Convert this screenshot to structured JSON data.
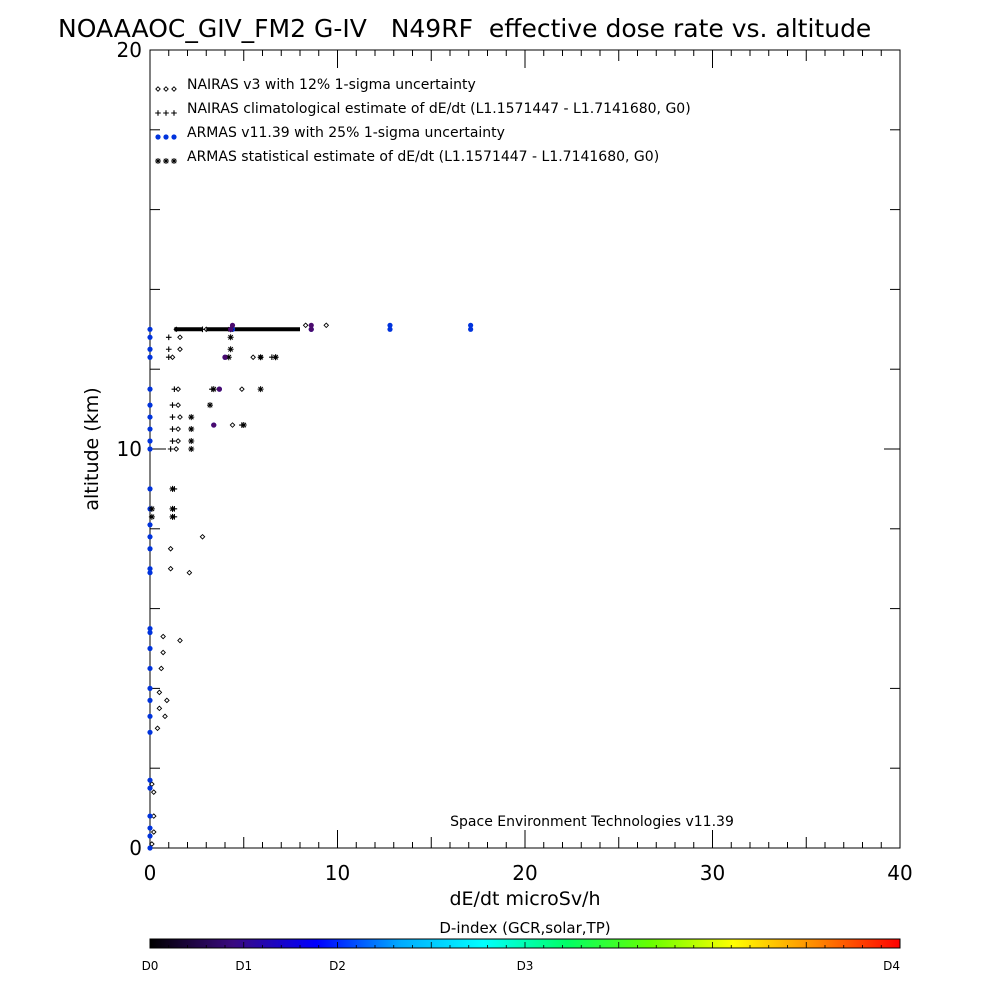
{
  "chart_data": {
    "type": "scatter",
    "title": "NOAAAOC_GIV_FM2 G-IV   N49RF  effective dose rate vs. altitude",
    "xlabel": "dE/dt microSv/h",
    "ylabel": "altitude (km)",
    "xlim": [
      0,
      40
    ],
    "ylim": [
      0,
      20
    ],
    "x_ticks": [
      0,
      10,
      20,
      30,
      40
    ],
    "y_ticks": [
      0,
      10,
      20
    ],
    "legend_position": "top-left",
    "annotation": "Space Environment Technologies v11.39",
    "colorbar": {
      "title": "D-index (GCR,solar,TP)",
      "labels": [
        {
          "text": "D0",
          "pos": 0.0
        },
        {
          "text": "D1",
          "pos": 0.125
        },
        {
          "text": "D2",
          "pos": 0.25
        },
        {
          "text": "D3",
          "pos": 0.5
        },
        {
          "text": "D4",
          "pos": 1.0
        }
      ],
      "stops": [
        "#000000",
        "#3a0a80",
        "#0000ff",
        "#00aaff",
        "#00ffff",
        "#00ff66",
        "#66ff00",
        "#ffff00",
        "#ff8800",
        "#ff0000"
      ]
    },
    "series": [
      {
        "name": "NAIRAS v3 with 12% 1-sigma uncertainty",
        "marker": "diamond",
        "color": "#000000",
        "points": [
          [
            0.1,
            0.1
          ],
          [
            0.2,
            0.4
          ],
          [
            0.2,
            0.8
          ],
          [
            0.2,
            1.4
          ],
          [
            0.1,
            1.6
          ],
          [
            0.4,
            3.0
          ],
          [
            0.8,
            3.3
          ],
          [
            0.5,
            3.5
          ],
          [
            0.9,
            3.7
          ],
          [
            0.5,
            3.9
          ],
          [
            0.6,
            4.5
          ],
          [
            0.7,
            4.9
          ],
          [
            0.7,
            5.3
          ],
          [
            1.6,
            5.2
          ],
          [
            2.1,
            6.9
          ],
          [
            1.1,
            7.0
          ],
          [
            1.1,
            7.5
          ],
          [
            2.8,
            7.8
          ],
          [
            1.4,
            10.0
          ],
          [
            1.5,
            10.2
          ],
          [
            1.5,
            10.5
          ],
          [
            1.6,
            10.8
          ],
          [
            1.5,
            11.1
          ],
          [
            1.5,
            11.5
          ],
          [
            1.2,
            12.3
          ],
          [
            1.6,
            12.5
          ],
          [
            1.6,
            12.8
          ],
          [
            1.4,
            13.0
          ],
          [
            4.4,
            10.6
          ],
          [
            4.9,
            11.5
          ],
          [
            5.5,
            12.3
          ],
          [
            5.9,
            12.3
          ],
          [
            3.0,
            13.0
          ],
          [
            8.3,
            13.1
          ],
          [
            9.4,
            13.1
          ]
        ]
      },
      {
        "name": "NAIRAS climatological estimate of dE/dt (L1.1571447 - L1.7141680, G0)",
        "marker": "plus",
        "color": "#000000",
        "points": [
          [
            1.1,
            10.0
          ],
          [
            1.2,
            10.2
          ],
          [
            1.2,
            10.5
          ],
          [
            1.2,
            10.8
          ],
          [
            1.2,
            11.1
          ],
          [
            1.3,
            11.5
          ],
          [
            1.0,
            12.3
          ],
          [
            1.0,
            12.5
          ],
          [
            1.0,
            12.8
          ],
          [
            1.3,
            8.3
          ],
          [
            1.3,
            8.5
          ],
          [
            1.3,
            9.0
          ],
          [
            4.9,
            10.6
          ],
          [
            3.3,
            11.5
          ],
          [
            6.7,
            12.3
          ],
          [
            6.5,
            12.3
          ],
          [
            2.8,
            13.0
          ]
        ]
      },
      {
        "name": "ARMAS v11.39 with 25% 1-sigma uncertainty",
        "marker": "dot",
        "color": "#0033dd",
        "points": [
          [
            0.0,
            0.0
          ],
          [
            0.0,
            0.3
          ],
          [
            0.0,
            0.5
          ],
          [
            0.0,
            0.8
          ],
          [
            0.0,
            1.5
          ],
          [
            0.0,
            1.7
          ],
          [
            0.0,
            2.9
          ],
          [
            0.0,
            3.3
          ],
          [
            0.0,
            3.7
          ],
          [
            0.0,
            4.0
          ],
          [
            0.0,
            4.5
          ],
          [
            0.0,
            5.0
          ],
          [
            0.0,
            5.4
          ],
          [
            0.0,
            5.5
          ],
          [
            0.0,
            6.9
          ],
          [
            0.0,
            7.0
          ],
          [
            0.0,
            7.5
          ],
          [
            0.0,
            7.8
          ],
          [
            0.0,
            8.1
          ],
          [
            0.0,
            8.5
          ],
          [
            0.0,
            9.0
          ],
          [
            0.0,
            10.0
          ],
          [
            0.0,
            10.2
          ],
          [
            0.0,
            10.5
          ],
          [
            0.0,
            10.8
          ],
          [
            0.0,
            11.1
          ],
          [
            0.0,
            11.5
          ],
          [
            0.0,
            12.3
          ],
          [
            0.0,
            12.5
          ],
          [
            0.0,
            12.8
          ],
          [
            0.0,
            13.0
          ],
          [
            3.4,
            10.6
          ],
          [
            3.7,
            11.5
          ],
          [
            4.0,
            12.3
          ],
          [
            4.4,
            13.0
          ],
          [
            8.6,
            13.0
          ],
          [
            12.8,
            13.0
          ],
          [
            17.1,
            13.0
          ],
          [
            17.1,
            13.1
          ],
          [
            12.8,
            13.1
          ]
        ]
      },
      {
        "name": "ARMAS statistical estimate of dE/dt (L1.1571447 - L1.7141680, G0)",
        "marker": "asterisk",
        "color": "#000000",
        "points": [
          [
            0.1,
            8.3
          ],
          [
            0.1,
            8.5
          ],
          [
            1.2,
            8.3
          ],
          [
            1.2,
            8.5
          ],
          [
            1.2,
            9.0
          ],
          [
            2.2,
            10.0
          ],
          [
            2.2,
            10.2
          ],
          [
            2.2,
            10.5
          ],
          [
            2.2,
            10.8
          ],
          [
            3.2,
            11.1
          ],
          [
            3.4,
            11.5
          ],
          [
            5.9,
            11.5
          ],
          [
            4.2,
            12.3
          ],
          [
            4.3,
            12.5
          ],
          [
            4.3,
            12.8
          ],
          [
            5.0,
            10.6
          ],
          [
            5.9,
            12.3
          ],
          [
            6.7,
            12.3
          ],
          [
            4.3,
            13.0
          ]
        ]
      },
      {
        "name": "",
        "marker": "dot",
        "color": "#4a0a6e",
        "points": [
          [
            3.4,
            10.6
          ],
          [
            3.7,
            11.5
          ],
          [
            4.0,
            12.3
          ],
          [
            4.3,
            13.0
          ],
          [
            4.4,
            13.1
          ],
          [
            8.6,
            13.0
          ],
          [
            8.6,
            13.1
          ]
        ]
      }
    ],
    "cruise_band": {
      "y": 13.0,
      "x_segments": [
        [
          1.3,
          2.8
        ],
        [
          3.0,
          4.3
        ],
        [
          4.5,
          8.0
        ]
      ]
    }
  }
}
